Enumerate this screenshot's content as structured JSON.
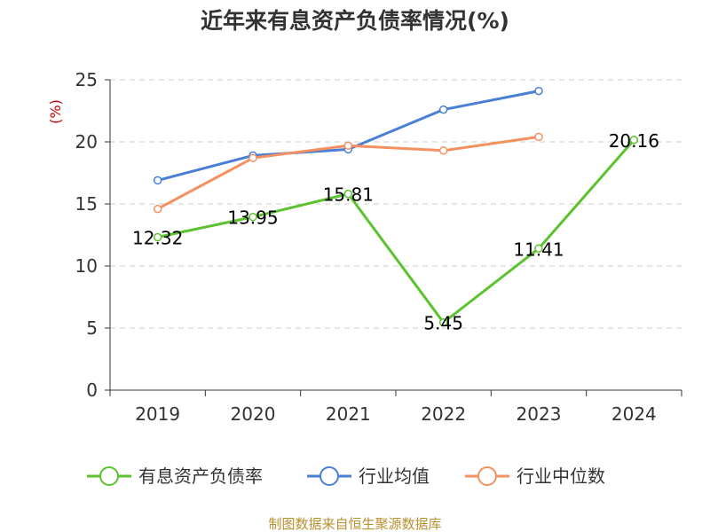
{
  "chart_data": {
    "type": "line",
    "title": "近年来有息资产负债率情况(%)",
    "ylabel": "(%)",
    "xlabel": "",
    "categories": [
      "2019",
      "2020",
      "2021",
      "2022",
      "2023",
      "2024"
    ],
    "ylim": [
      0,
      25
    ],
    "yticks": [
      0,
      5,
      10,
      15,
      20,
      25
    ],
    "grid": true,
    "legend_position": "bottom",
    "series": [
      {
        "name": "有息资产负债率",
        "color": "#5cc22e",
        "values": [
          12.32,
          13.95,
          15.81,
          5.45,
          11.41,
          20.16
        ],
        "labels": [
          "12.32",
          "13.95",
          "15.81",
          "5.45",
          "11.41",
          "20.16"
        ]
      },
      {
        "name": "行业均值",
        "color": "#4a7fd6",
        "values": [
          16.9,
          18.9,
          19.4,
          22.6,
          24.1,
          null
        ]
      },
      {
        "name": "行业中位数",
        "color": "#f59060",
        "values": [
          14.6,
          18.7,
          19.7,
          19.3,
          20.4,
          null
        ]
      }
    ],
    "source": "制图数据来自恒生聚源数据库"
  }
}
